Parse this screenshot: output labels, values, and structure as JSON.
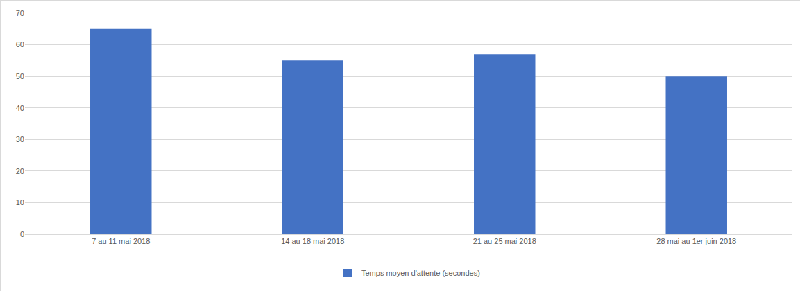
{
  "chart_data": {
    "type": "bar",
    "categories": [
      "7 au 11 mai 2018",
      "14 au 18 mai 2018",
      "21 au 25 mai 2018",
      "28 mai au 1er juin 2018"
    ],
    "series": [
      {
        "name": "Temps moyen d'attente (secondes)",
        "color": "#4472c4",
        "values": [
          65,
          55,
          57,
          50
        ]
      }
    ],
    "ylim": [
      0,
      70
    ],
    "yticks": [
      0,
      10,
      20,
      30,
      40,
      50,
      60,
      70
    ],
    "grid": true,
    "legend": "bottom"
  }
}
